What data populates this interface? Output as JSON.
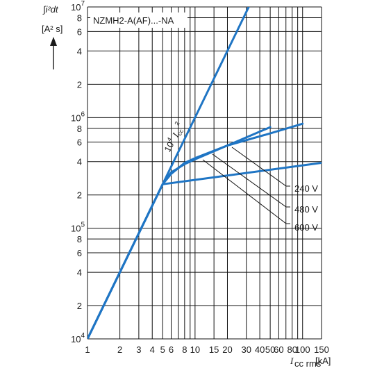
{
  "chart_data": {
    "type": "line",
    "title": "NZMH2-A(AF)...-NA",
    "ylabel": "∫i²dt",
    "ylabel_unit": "[A² s]",
    "xlabel": "I",
    "xlabel_sub": "cc rms",
    "xlabel_unit": "[kA]",
    "xscale": "log",
    "yscale": "log",
    "xlim": [
      1,
      150
    ],
    "ylim": [
      10000,
      10000000
    ],
    "grid": true,
    "x_ticks": [
      {
        "value": 1,
        "label": "1"
      },
      {
        "value": 2,
        "label": "2"
      },
      {
        "value": 3,
        "label": "3"
      },
      {
        "value": 4,
        "label": "4"
      },
      {
        "value": 5,
        "label": "5"
      },
      {
        "value": 6,
        "label": "6"
      },
      {
        "value": 8,
        "label": "8"
      },
      {
        "value": 10,
        "label": "10"
      },
      {
        "value": 15,
        "label": "15"
      },
      {
        "value": 20,
        "label": "20"
      },
      {
        "value": 30,
        "label": "30"
      },
      {
        "value": 40,
        "label": "40"
      },
      {
        "value": 50,
        "label": "50"
      },
      {
        "value": 60,
        "label": "60"
      },
      {
        "value": 80,
        "label": "80"
      },
      {
        "value": 100,
        "label": "100"
      },
      {
        "value": 150,
        "label": "150"
      }
    ],
    "y_ticks": [
      {
        "value": 10000,
        "base": "10",
        "exp": "4"
      },
      {
        "value": 20000,
        "label": "2"
      },
      {
        "value": 40000,
        "label": "4"
      },
      {
        "value": 60000,
        "label": "6"
      },
      {
        "value": 80000,
        "label": "8"
      },
      {
        "value": 100000,
        "base": "10",
        "exp": "5"
      },
      {
        "value": 200000,
        "label": "2"
      },
      {
        "value": 400000,
        "label": "4"
      },
      {
        "value": 600000,
        "label": "6"
      },
      {
        "value": 800000,
        "label": "8"
      },
      {
        "value": 1000000,
        "base": "10",
        "exp": "6"
      },
      {
        "value": 2000000,
        "label": "2"
      },
      {
        "value": 4000000,
        "label": "4"
      },
      {
        "value": 6000000,
        "label": "6"
      },
      {
        "value": 8000000,
        "label": "8"
      },
      {
        "value": 10000000,
        "base": "10",
        "exp": "7"
      }
    ],
    "x_grid": [
      1,
      2,
      3,
      4,
      5,
      6,
      7,
      8,
      9,
      10,
      15,
      20,
      30,
      40,
      50,
      60,
      70,
      80,
      90,
      100,
      150
    ],
    "y_grid": [
      10000,
      20000,
      40000,
      60000,
      80000,
      100000,
      200000,
      400000,
      600000,
      800000,
      1000000,
      2000000,
      4000000,
      6000000,
      8000000,
      10000000
    ],
    "series": [
      {
        "name": "10⁴ Icc²",
        "x": [
          1,
          31.6
        ],
        "y": [
          10000,
          10000000
        ]
      },
      {
        "name": "240 V",
        "x": [
          1,
          5,
          150
        ],
        "y": [
          10000,
          250000,
          390000
        ]
      },
      {
        "name": "480 V",
        "x": [
          1,
          5,
          6,
          8,
          10,
          20,
          50,
          100
        ],
        "y": [
          10000,
          250000,
          310000,
          390000,
          430000,
          560000,
          720000,
          880000
        ]
      },
      {
        "name": "600 V",
        "x": [
          1,
          5,
          6,
          8,
          10,
          20,
          50
        ],
        "y": [
          10000,
          250000,
          320000,
          380000,
          420000,
          560000,
          820000
        ]
      }
    ],
    "line_color": "#1f75c4",
    "annotation": {
      "base": "10",
      "exp": "4",
      "var": "I",
      "sub": "cc",
      "pow": "2"
    }
  }
}
